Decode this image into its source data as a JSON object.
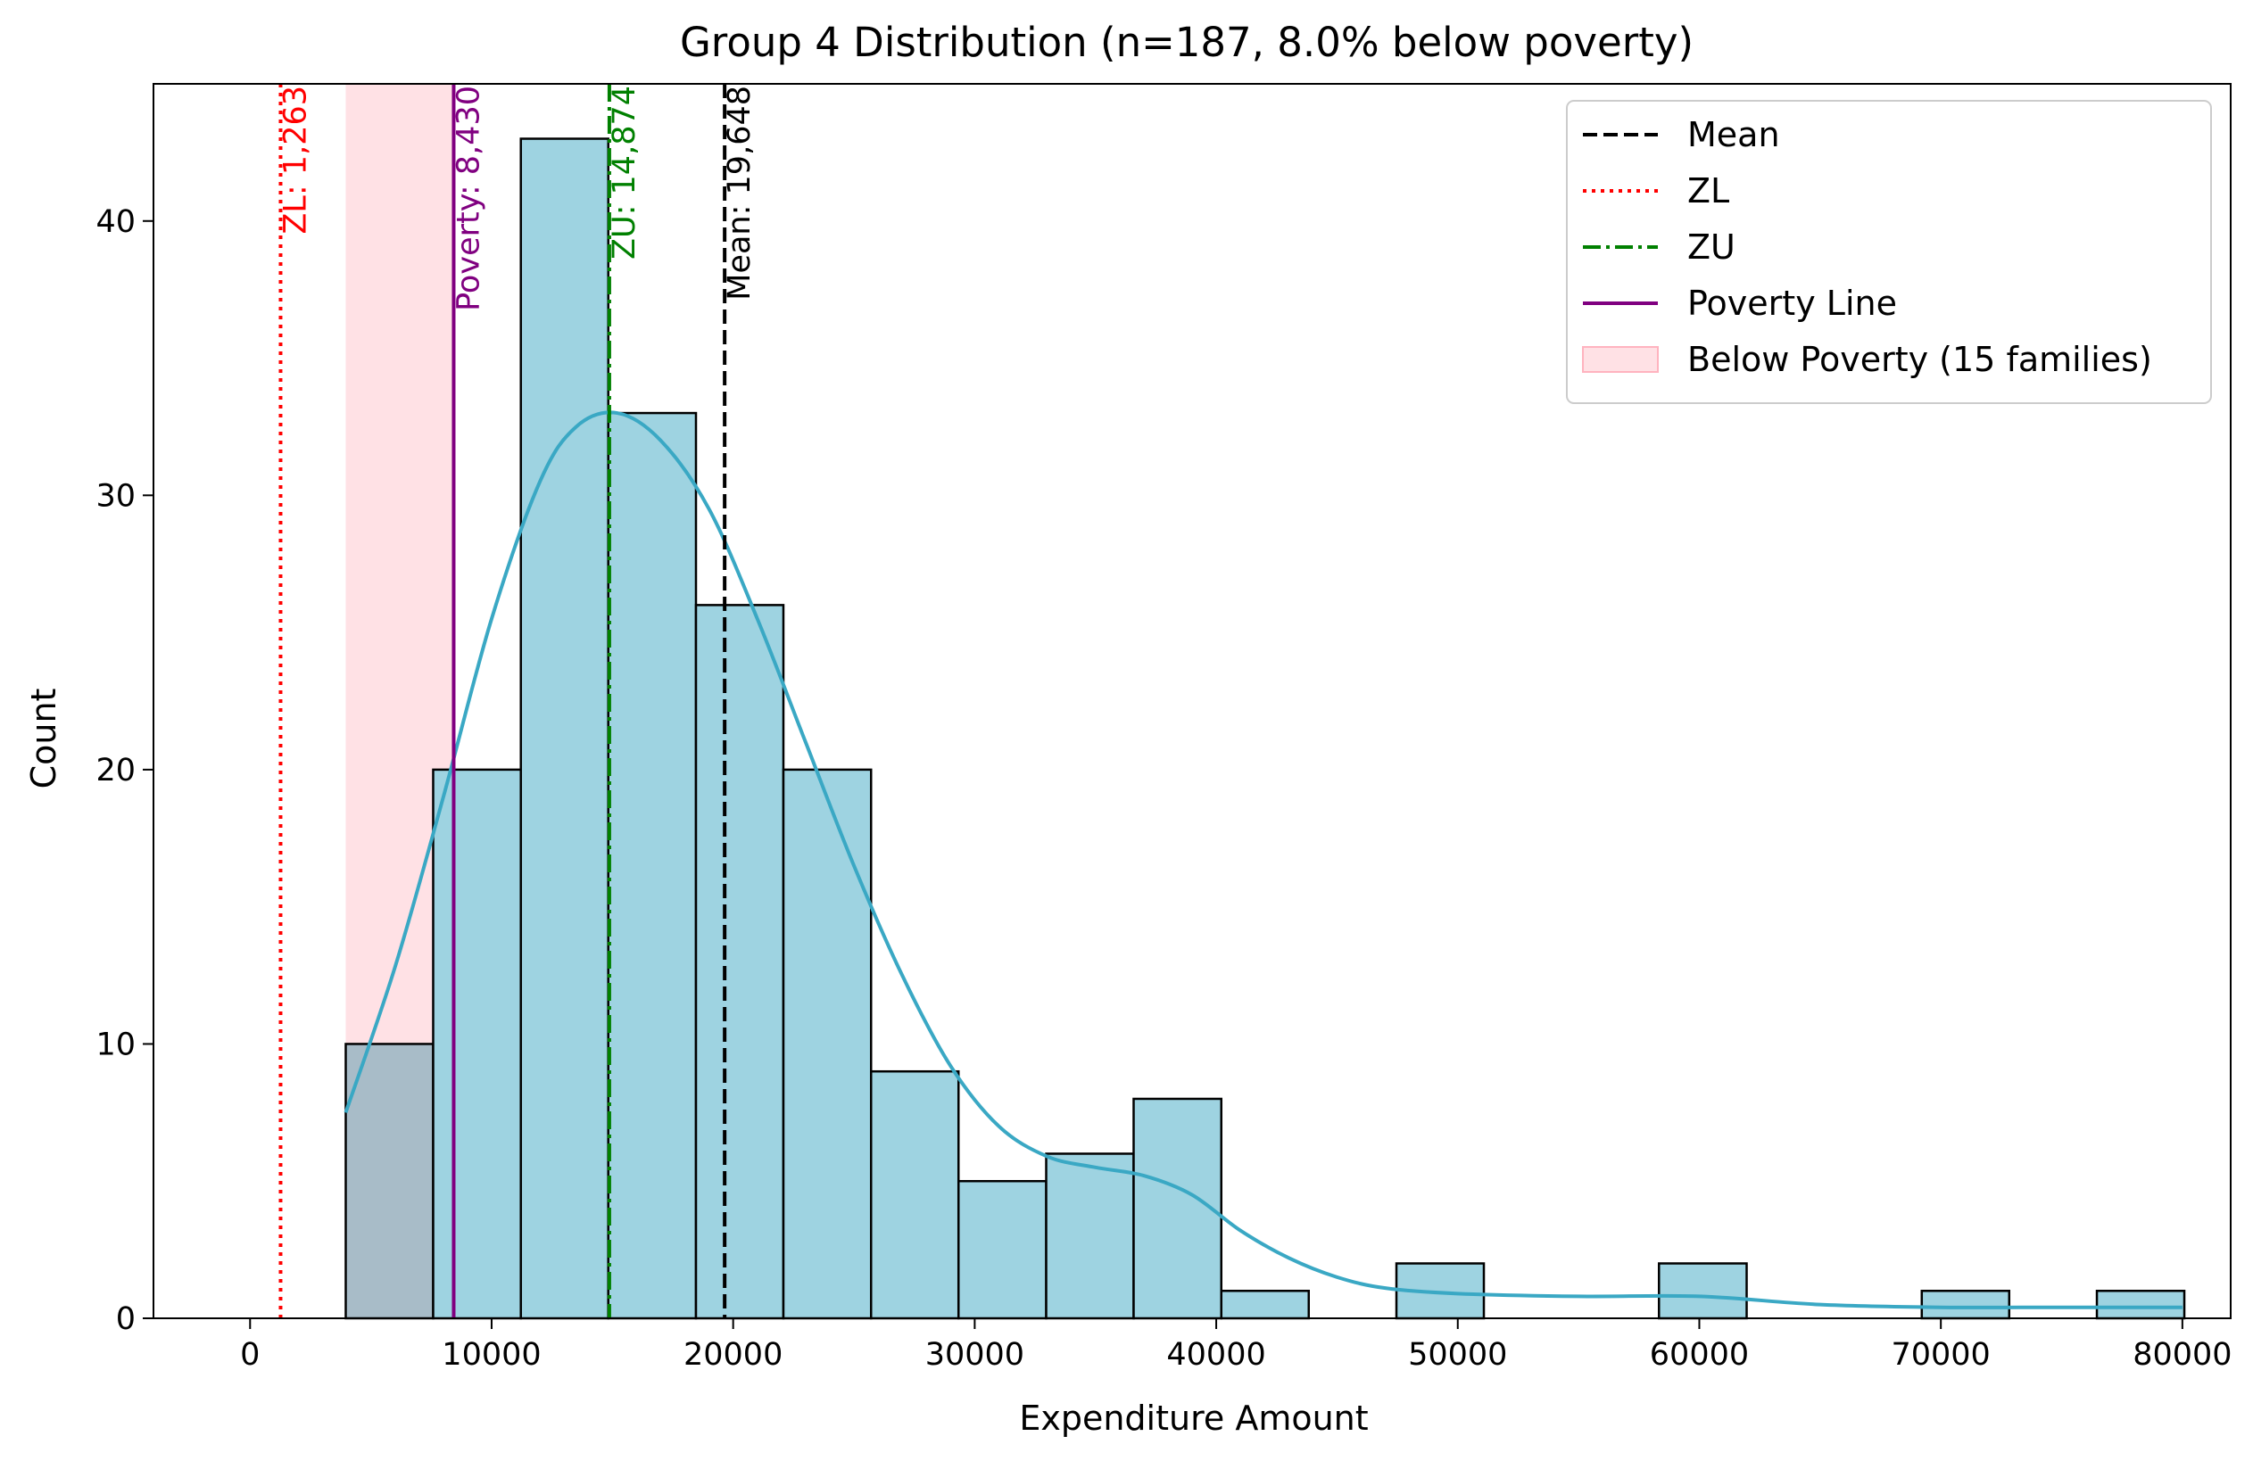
{
  "chart_data": {
    "type": "bar",
    "title": "Group 4 Distribution (n=187, 8.0% below poverty)",
    "xlabel": "Expenditure Amount",
    "ylabel": "Count",
    "xlim": [
      -4000,
      82000
    ],
    "ylim": [
      0,
      45
    ],
    "x_ticks": [
      0,
      10000,
      20000,
      30000,
      40000,
      50000,
      60000,
      70000,
      80000
    ],
    "x_tick_labels": [
      "0",
      "10000",
      "20000",
      "30000",
      "40000",
      "50000",
      "60000",
      "70000",
      "80000"
    ],
    "y_ticks": [
      0,
      10,
      20,
      30,
      40
    ],
    "y_tick_labels": [
      "0",
      "10",
      "20",
      "30",
      "40"
    ],
    "grid": false,
    "bins": [
      {
        "x0": 3960,
        "x1": 7580,
        "count": 10
      },
      {
        "x0": 7580,
        "x1": 11210,
        "count": 20
      },
      {
        "x0": 11210,
        "x1": 14830,
        "count": 43
      },
      {
        "x0": 14830,
        "x1": 18460,
        "count": 33
      },
      {
        "x0": 18460,
        "x1": 22080,
        "count": 26
      },
      {
        "x0": 22080,
        "x1": 25710,
        "count": 20
      },
      {
        "x0": 25710,
        "x1": 29330,
        "count": 9
      },
      {
        "x0": 29330,
        "x1": 32960,
        "count": 5
      },
      {
        "x0": 32960,
        "x1": 36580,
        "count": 6
      },
      {
        "x0": 36580,
        "x1": 40210,
        "count": 8
      },
      {
        "x0": 40210,
        "x1": 43830,
        "count": 1
      },
      {
        "x0": 43830,
        "x1": 47460,
        "count": 0
      },
      {
        "x0": 47460,
        "x1": 51080,
        "count": 2
      },
      {
        "x0": 51080,
        "x1": 54710,
        "count": 0
      },
      {
        "x0": 54710,
        "x1": 58330,
        "count": 0
      },
      {
        "x0": 58330,
        "x1": 61960,
        "count": 2
      },
      {
        "x0": 61960,
        "x1": 65580,
        "count": 0
      },
      {
        "x0": 65580,
        "x1": 69210,
        "count": 0
      },
      {
        "x0": 69210,
        "x1": 72830,
        "count": 1
      },
      {
        "x0": 72830,
        "x1": 76460,
        "count": 0
      },
      {
        "x0": 76460,
        "x1": 80080,
        "count": 1
      }
    ],
    "kde": {
      "x": [
        3960,
        6000,
        8000,
        10000,
        12000,
        13500,
        15200,
        17000,
        19000,
        21000,
        23000,
        25000,
        27000,
        29000,
        31000,
        33000,
        35000,
        37000,
        39000,
        41000,
        43000,
        45000,
        47000,
        50000,
        55000,
        60000,
        65000,
        70000,
        75000,
        80000
      ],
      "y": [
        7.5,
        12.8,
        19.0,
        25.5,
        30.5,
        32.5,
        33.0,
        32.0,
        29.5,
        25.5,
        21.0,
        16.5,
        12.5,
        9.2,
        7.0,
        5.9,
        5.5,
        5.2,
        4.5,
        3.2,
        2.2,
        1.5,
        1.1,
        0.9,
        0.8,
        0.8,
        0.5,
        0.4,
        0.4,
        0.4
      ]
    },
    "poverty_region": {
      "x0": 3960,
      "x1": 8430,
      "color": "#ffb3bf"
    },
    "reference_lines": [
      {
        "name": "Mean",
        "x": 19648,
        "label": "Mean: 19,648",
        "color": "#000000",
        "style": "dashed"
      },
      {
        "name": "ZL",
        "x": 1263,
        "label": "ZL: 1,263",
        "color": "#ff0000",
        "style": "dotted"
      },
      {
        "name": "ZU",
        "x": 14874,
        "label": "ZU: 14,874",
        "color": "#008000",
        "style": "dashdot"
      },
      {
        "name": "Poverty Line",
        "x": 8430,
        "label": "Poverty: 8,430",
        "color": "#800080",
        "style": "solid"
      }
    ],
    "legend": {
      "position": "top-right",
      "entries": [
        {
          "label": "Mean",
          "kind": "line",
          "color": "#000000",
          "style": "dashed"
        },
        {
          "label": "ZL",
          "kind": "line",
          "color": "#ff0000",
          "style": "dotted"
        },
        {
          "label": "ZU",
          "kind": "line",
          "color": "#008000",
          "style": "dashdot"
        },
        {
          "label": "Poverty Line",
          "kind": "line",
          "color": "#800080",
          "style": "solid"
        },
        {
          "label": "Below Poverty (15 families)",
          "kind": "patch",
          "color": "#ffb3bf"
        }
      ]
    },
    "colors": {
      "bar_fill": "#9ed3e1",
      "bar_stroke": "#000000",
      "kde_line": "#3aa8c4",
      "below_poverty_bar_fill": "#a8bcc8"
    }
  }
}
